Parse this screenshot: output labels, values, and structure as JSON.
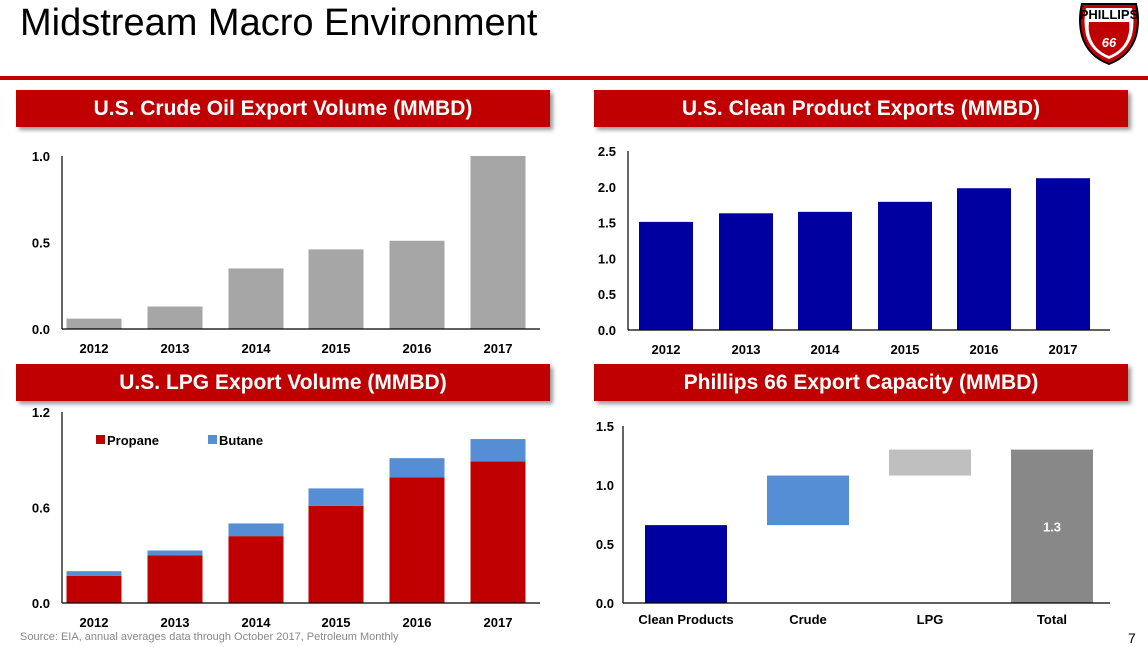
{
  "title": "Midstream Macro Environment",
  "logo": {
    "text_top": "PHILLIPS",
    "text_main": "66"
  },
  "source": "Source: EIA, annual averages data through October 2017, Petroleum Monthly",
  "page_number": "7",
  "chart_data": [
    {
      "id": "crude",
      "type": "bar",
      "title": "U.S. Crude Oil Export Volume (MMBD)",
      "categories": [
        "2012",
        "2013",
        "2014",
        "2015",
        "2016",
        "2017"
      ],
      "values": [
        0.06,
        0.13,
        0.35,
        0.46,
        0.51,
        1.0
      ],
      "ylim": [
        0,
        1.0
      ],
      "yticks": [
        "0.0",
        "0.5",
        "1.0"
      ],
      "color": "#a6a6a6",
      "grid": false
    },
    {
      "id": "clean",
      "type": "bar",
      "title": "U.S. Clean Product Exports (MMBD)",
      "categories": [
        "2012",
        "2013",
        "2014",
        "2015",
        "2016",
        "2017"
      ],
      "values": [
        1.51,
        1.63,
        1.65,
        1.79,
        1.98,
        2.12
      ],
      "ylim": [
        0,
        2.5
      ],
      "yticks": [
        "0.0",
        "0.5",
        "1.0",
        "1.5",
        "2.0",
        "2.5"
      ],
      "color": "#0000a0",
      "grid": false
    },
    {
      "id": "lpg",
      "type": "stacked-bar",
      "title": "U.S. LPG Export Volume (MMBD)",
      "categories": [
        "2012",
        "2013",
        "2014",
        "2015",
        "2016",
        "2017"
      ],
      "series": [
        {
          "name": "Propane",
          "values": [
            0.17,
            0.3,
            0.42,
            0.61,
            0.79,
            0.89
          ],
          "color": "#c00000"
        },
        {
          "name": "Butane",
          "values": [
            0.03,
            0.03,
            0.08,
            0.11,
            0.12,
            0.14
          ],
          "color": "#558ed5"
        }
      ],
      "ylim": [
        0,
        1.2
      ],
      "yticks": [
        "0.0",
        "0.6",
        "1.2"
      ],
      "legend": "top-left",
      "grid": false
    },
    {
      "id": "capacity",
      "type": "waterfall",
      "title": "Phillips 66 Export Capacity (MMBD)",
      "categories": [
        "Clean Products",
        "Crude",
        "LPG",
        "Total"
      ],
      "bars": [
        {
          "start": 0,
          "end": 0.66,
          "color": "#0000a0"
        },
        {
          "start": 0.66,
          "end": 1.08,
          "color": "#558ed5"
        },
        {
          "start": 1.08,
          "end": 1.3,
          "color": "#bfbfbf"
        },
        {
          "start": 0,
          "end": 1.3,
          "color": "#888888",
          "label": "1.3"
        }
      ],
      "ylim": [
        0,
        1.5
      ],
      "yticks": [
        "0.0",
        "0.5",
        "1.0",
        "1.5"
      ],
      "grid": false
    }
  ]
}
